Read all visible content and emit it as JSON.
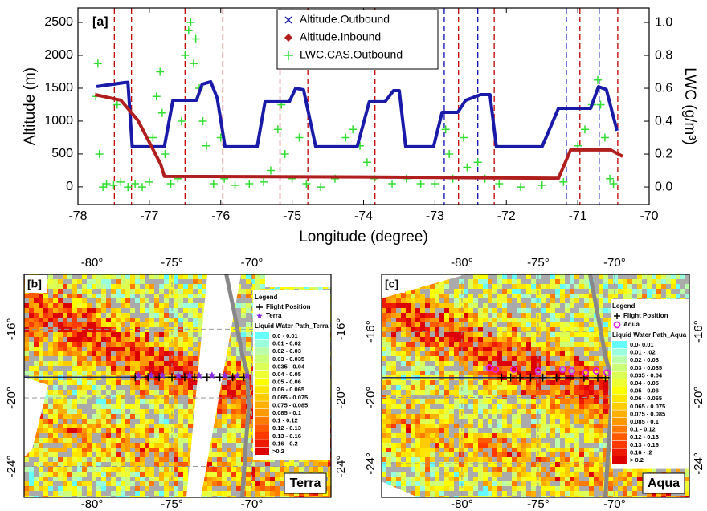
{
  "chart_data": [
    {
      "type": "line",
      "title": "[a]",
      "xlabel": "Longitude (degree)",
      "ylabel": "Altitude (m)",
      "y2label": "LWC (g/m³)",
      "xlim": [
        -78,
        -70
      ],
      "xticks": [
        -78,
        -77,
        -76,
        -75,
        -74,
        -73,
        -72,
        -71,
        -70
      ],
      "ylim": [
        -270,
        2720
      ],
      "yticks": [
        0,
        500,
        1000,
        1500,
        2000,
        2500
      ],
      "y2lim": [
        -0.107,
        1.088
      ],
      "y2ticks": [
        {
          "value": 0,
          "label": "0.0"
        },
        0.2,
        0.4,
        0.6,
        0.8,
        {
          "value": 1,
          "label": "1.0"
        }
      ],
      "legend": "top-center",
      "reference_lines": [
        {
          "color": "#c00000",
          "x": [
            -77.49,
            -77.25,
            -76.5,
            -75.97,
            -75.17,
            -74.78,
            -73.84,
            -72.67,
            -72.17,
            -70.97,
            -70.44
          ]
        },
        {
          "color": "#1010b0",
          "x": [
            -72.87,
            -72.4,
            -71.16,
            -70.7
          ]
        }
      ],
      "series": [
        {
          "name": "Altitude.Outbound",
          "color": "#1a1aa8",
          "mode": "lines",
          "marker": "x",
          "x": [
            -77.74,
            -77.35,
            -77.3,
            -77.24,
            -76.79,
            -76.67,
            -76.34,
            -76.26,
            -76.14,
            -76.05,
            -75.94,
            -75.49,
            -75.38,
            -75.04,
            -74.95,
            -74.84,
            -74.67,
            -74.09,
            -73.92,
            -73.7,
            -73.58,
            -73.5,
            -73.41,
            -73.02,
            -72.9,
            -72.68,
            -72.57,
            -72.36,
            -72.23,
            -72.14,
            -71.5,
            -71.27,
            -70.82,
            -70.71,
            -70.6,
            -70.45
          ],
          "values": [
            1525,
            1585,
            1590,
            610,
            610,
            1317,
            1317,
            1560,
            1598,
            1350,
            610,
            610,
            1293,
            1293,
            1500,
            1475,
            610,
            610,
            1293,
            1293,
            1463,
            1463,
            610,
            610,
            1134,
            1134,
            1317,
            1402,
            1402,
            610,
            610,
            1195,
            1195,
            1524,
            1480,
            854
          ]
        },
        {
          "name": "Altitude.Inbound",
          "color": "#b01e1e",
          "mode": "lines",
          "marker": "diamond",
          "x": [
            -77.76,
            -77.4,
            -77.16,
            -76.84,
            -76.79,
            -74.0,
            -71.27,
            -71.1,
            -70.54,
            -70.37
          ],
          "values": [
            1402,
            1317,
            1012,
            341,
            159,
            150,
            130,
            561,
            561,
            463
          ]
        },
        {
          "name": "LWC.CAS.Outbound",
          "color": "#33dd33",
          "mode": "markers",
          "marker": "+",
          "axis": "y2",
          "x": [
            -77.75,
            -77.72,
            -77.7,
            -77.65,
            -77.6,
            -77.5,
            -77.45,
            -77.4,
            -77.3,
            -77.2,
            -77.1,
            -77.0,
            -76.95,
            -76.9,
            -76.85,
            -76.82,
            -76.78,
            -76.7,
            -76.6,
            -76.55,
            -76.5,
            -76.45,
            -76.42,
            -76.38,
            -76.35,
            -76.3,
            -76.25,
            -76.2,
            -76.1,
            -76.0,
            -75.95,
            -75.8,
            -75.6,
            -75.4,
            -75.3,
            -75.2,
            -75.15,
            -75.1,
            -75.0,
            -74.9,
            -74.8,
            -74.6,
            -74.4,
            -74.25,
            -74.15,
            -74.05,
            -73.95,
            -73.85,
            -73.6,
            -73.4,
            -73.2,
            -73.0,
            -72.85,
            -72.8,
            -72.75,
            -72.6,
            -72.55,
            -72.4,
            -72.3,
            -72.1,
            -71.8,
            -71.5,
            -71.2,
            -71.0,
            -70.9,
            -70.8,
            -70.72,
            -70.68,
            -70.62,
            -70.55,
            -70.5
          ],
          "values": [
            0.55,
            0.75,
            0.2,
            0.0,
            0.02,
            0.01,
            0.5,
            0.03,
            0.0,
            0.02,
            0.0,
            0.03,
            0.3,
            0.55,
            0.7,
            0.45,
            0.2,
            0.02,
            0.05,
            0.4,
            0.8,
            0.95,
            1.0,
            0.75,
            0.9,
            0.6,
            0.4,
            0.25,
            0.02,
            0.3,
            0.05,
            0.01,
            0.02,
            0.03,
            0.1,
            0.35,
            0.5,
            0.2,
            0.05,
            0.3,
            0.02,
            0.0,
            0.05,
            0.3,
            0.35,
            0.25,
            0.15,
            0.05,
            0.02,
            0.05,
            0.02,
            0.02,
            0.35,
            0.2,
            0.05,
            0.3,
            0.12,
            0.15,
            0.05,
            0.02,
            0.0,
            0.01,
            0.03,
            0.25,
            0.35,
            0.5,
            0.65,
            0.5,
            0.3,
            0.05,
            0.02
          ]
        }
      ]
    },
    {
      "type": "map",
      "title": "[b]",
      "satellite": "Terra",
      "xlim": [
        -84.25,
        -65.05
      ],
      "ylim": [
        -25.8,
        -12.8
      ],
      "xticks": [
        {
          "value": -80,
          "label": "-80°"
        },
        {
          "value": -75,
          "label": "-75°"
        },
        {
          "value": -70,
          "label": "-70°"
        }
      ],
      "yticks": [
        {
          "value": -16,
          "label": "-16°"
        },
        {
          "value": -20,
          "label": "-20°"
        },
        {
          "value": -24,
          "label": "-24°"
        }
      ],
      "legend": {
        "title": "Legend",
        "track_label": "Flight Position",
        "satellite_label": "Terra",
        "scale_title": "Liquid Water Path_Terra",
        "categories": [
          "0.0 - 0.01",
          "0.01 - 0.02",
          "0.02 - 0.03",
          "0.03 - 0.035",
          "0.035 - 0.04",
          "0.04 - 0.05",
          "0.05 - 0.06",
          "0.06 - 0.065",
          "0.065 - 0.075",
          "0.075 - 0.085",
          "0.085 - 0.1",
          "0.1 - 0.12",
          "0.12 - 0.13",
          "0.13 - 0.16",
          "0.16 - 0.2",
          ">0.2"
        ],
        "colors": [
          "#66ffff",
          "#99ffdd",
          "#bbffaa",
          "#ccff77",
          "#ddff55",
          "#eeff33",
          "#ffff00",
          "#ffe600",
          "#ffcc00",
          "#ffb000",
          "#ff9900",
          "#ff7a00",
          "#ff5a00",
          "#ff3a00",
          "#ee1a00",
          "#dd0000"
        ]
      },
      "flight_positions": {
        "color": "#000000",
        "x": [
          -77.3,
          -76.5,
          -75.8,
          -75.0,
          -74.2,
          -73.6,
          -72.8,
          -72.0,
          -71.2,
          -70.5
        ],
        "y": [
          -18.8,
          -18.8,
          -18.8,
          -18.8,
          -18.8,
          -18.8,
          -18.8,
          -18.8,
          -18.8,
          -18.8
        ]
      },
      "satellite_positions": {
        "color": "#8a2be2",
        "marker": "star",
        "x": [
          -77.1,
          -76.3,
          -75.6,
          -74.6,
          -73.9,
          -73.3,
          -72.5,
          -71.7,
          -70.9,
          -70.3
        ],
        "y": [
          -18.7,
          -18.7,
          -18.7,
          -18.7,
          -18.7,
          -18.7,
          -18.7,
          -18.7,
          -18.7,
          -18.7
        ]
      }
    },
    {
      "type": "map",
      "title": "[c]",
      "satellite": "Aqua",
      "xlim": [
        -85.26,
        -65.1
      ],
      "ylim": [
        -26.04,
        -12.55
      ],
      "xticks": [
        {
          "value": -80,
          "label": "-80°"
        },
        {
          "value": -75,
          "label": "-75°"
        },
        {
          "value": -70,
          "label": "-70°"
        }
      ],
      "yticks": [
        {
          "value": -16,
          "label": "-16°"
        },
        {
          "value": -20,
          "label": "-20°"
        },
        {
          "value": -24,
          "label": "-24°"
        }
      ],
      "legend": {
        "title": "Legend",
        "track_label": "Flight Position",
        "satellite_label": "Aqua",
        "scale_title": "Liquid Water Path_Aqua",
        "categories": [
          "0.0- 0.01",
          "0.01 - .02",
          "0.02 - 0.03",
          "0.03 - 0.035",
          "0.035 - 0.04",
          "0.04 - 0.05",
          "0.05 - 0.06",
          "0.06 - 0.065",
          "0.065 - 0.075",
          "0.075 - 0.085",
          "0.085 - 0.1",
          "0.1 - 0.12",
          "0.12 - 0.13",
          "0.13 - 0.16",
          "0.16 - .2",
          "> 0.2"
        ],
        "colors": [
          "#66ffff",
          "#99ffdd",
          "#bbffaa",
          "#ccff77",
          "#ddff55",
          "#eeff33",
          "#ffff00",
          "#ffe600",
          "#ffcc00",
          "#ffb000",
          "#ff9900",
          "#ff7a00",
          "#ff5a00",
          "#ff3a00",
          "#ee1a00",
          "#dd0000"
        ]
      },
      "flight_positions": {
        "color": "#000000",
        "x": [
          -77.4,
          -76.8,
          -76.2,
          -75.5,
          -74.7,
          -73.8,
          -72.9,
          -72.0,
          -71.1,
          -70.6
        ],
        "y": [
          -18.8,
          -18.8,
          -18.8,
          -18.8,
          -18.8,
          -18.8,
          -18.8,
          -18.8,
          -18.8,
          -18.8
        ]
      },
      "satellite_positions": {
        "color": "#e020e0",
        "marker": "circle",
        "x": [
          -78.2,
          -77.8,
          -76.6,
          -75.0,
          -73.4,
          -72.8,
          -71.9,
          -71.2,
          -70.5,
          -70.0
        ],
        "y": [
          -18.2,
          -18.3,
          -18.3,
          -18.4,
          -18.3,
          -18.4,
          -18.5,
          -18.4,
          -18.5,
          -18.5
        ]
      }
    }
  ]
}
